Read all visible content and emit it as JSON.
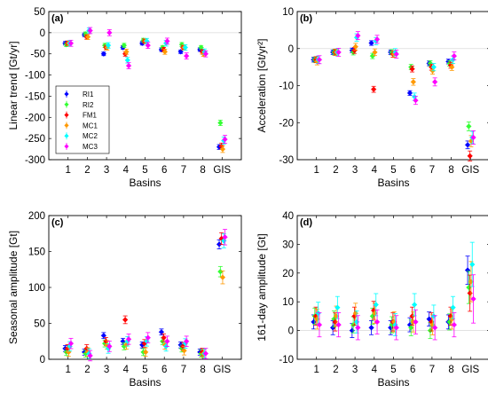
{
  "figure": {
    "series_styles": [
      {
        "name": "RI1",
        "color": "#0000ff"
      },
      {
        "name": "RI2",
        "color": "#33ff33"
      },
      {
        "name": "FM1",
        "color": "#ff0000"
      },
      {
        "name": "MC1",
        "color": "#ff9900"
      },
      {
        "name": "MC2",
        "color": "#00ffff"
      },
      {
        "name": "MC3",
        "color": "#ff00ff"
      }
    ],
    "marker_shape": "diamond",
    "error_bars": true,
    "category_axis_label": "Basins"
  },
  "chart_data": [
    {
      "type": "scatter",
      "panel": "(a)",
      "title": "",
      "xlabel": "Basins",
      "ylabel": "Linear trend [Gt/yr]",
      "categories": [
        "1",
        "2",
        "3",
        "4",
        "5",
        "6",
        "7",
        "8",
        "GIS"
      ],
      "ylim": [
        -300,
        50
      ],
      "yticks": [
        50,
        0,
        -50,
        -100,
        -150,
        -200,
        -250,
        -300
      ],
      "zero_line": true,
      "legend": "lower-left",
      "series": [
        {
          "name": "RI1",
          "values": [
            -25,
            -5,
            -50,
            -35,
            -25,
            -40,
            -45,
            -40,
            -270
          ]
        },
        {
          "name": "RI2",
          "values": [
            -28,
            -3,
            -30,
            -30,
            -18,
            -35,
            -28,
            -35,
            -213
          ]
        },
        {
          "name": "FM1",
          "values": [
            -25,
            -10,
            -35,
            -50,
            -20,
            -40,
            -35,
            -45,
            -268
          ]
        },
        {
          "name": "MC1",
          "values": [
            -25,
            -10,
            -35,
            -45,
            -20,
            -45,
            -35,
            -50,
            -275
          ]
        },
        {
          "name": "MC2",
          "values": [
            -25,
            5,
            -30,
            -65,
            -20,
            -25,
            -35,
            -45,
            -255
          ]
        },
        {
          "name": "MC3",
          "values": [
            -25,
            5,
            0,
            -78,
            -30,
            -20,
            -55,
            -50,
            -252
          ]
        }
      ]
    },
    {
      "type": "scatter",
      "panel": "(b)",
      "title": "",
      "xlabel": "Basins",
      "ylabel": "Acceleration [Gt/yr²]",
      "categories": [
        "1",
        "2",
        "3",
        "4",
        "5",
        "6",
        "7",
        "8",
        "GIS"
      ],
      "ylim": [
        -30,
        10
      ],
      "yticks": [
        10,
        0,
        -10,
        -20,
        -30
      ],
      "zero_line": true,
      "series": [
        {
          "name": "RI1",
          "values": [
            -3,
            -1,
            -0.5,
            1.5,
            -1,
            -12,
            -4,
            -3.5,
            -26
          ]
        },
        {
          "name": "RI2",
          "values": [
            -3,
            -1,
            -1,
            -2,
            -1,
            -5,
            -4,
            -4,
            -21
          ]
        },
        {
          "name": "FM1",
          "values": [
            -3,
            -1,
            -0.5,
            -11,
            -1.5,
            -5.5,
            -5,
            -4.5,
            -29
          ]
        },
        {
          "name": "MC1",
          "values": [
            -3.5,
            -1,
            0.5,
            -1,
            -1.5,
            -9,
            -6,
            -5,
            -25
          ]
        },
        {
          "name": "MC2",
          "values": [
            -3,
            -1,
            3,
            2,
            -1,
            -13,
            -5,
            -3,
            -24
          ]
        },
        {
          "name": "MC3",
          "values": [
            -3,
            -1,
            3.5,
            2.5,
            -1.5,
            -14,
            -9,
            -2,
            -24
          ]
        }
      ]
    },
    {
      "type": "scatter",
      "panel": "(c)",
      "title": "",
      "xlabel": "Basins",
      "ylabel": "Seasonal amplitude [Gt]",
      "categories": [
        "1",
        "2",
        "3",
        "4",
        "5",
        "6",
        "7",
        "8",
        "GIS"
      ],
      "ylim": [
        0,
        200
      ],
      "yticks": [
        200,
        150,
        100,
        50,
        0
      ],
      "zero_line": false,
      "series": [
        {
          "name": "RI1",
          "values": [
            15,
            10,
            33,
            25,
            20,
            38,
            20,
            10,
            160
          ]
        },
        {
          "name": "RI2",
          "values": [
            10,
            8,
            22,
            18,
            10,
            25,
            15,
            8,
            122
          ]
        },
        {
          "name": "FM1",
          "values": [
            15,
            15,
            25,
            55,
            22,
            30,
            18,
            10,
            168
          ]
        },
        {
          "name": "MC1",
          "values": [
            10,
            10,
            20,
            20,
            10,
            20,
            12,
            8,
            114
          ]
        },
        {
          "name": "MC2",
          "values": [
            18,
            8,
            15,
            25,
            25,
            18,
            22,
            8,
            165
          ]
        },
        {
          "name": "MC3",
          "values": [
            22,
            5,
            18,
            28,
            30,
            25,
            25,
            8,
            170
          ]
        }
      ]
    },
    {
      "type": "scatter",
      "panel": "(d)",
      "title": "",
      "xlabel": "Basins",
      "ylabel": "161-day amplitude [Gt]",
      "categories": [
        "1",
        "2",
        "3",
        "4",
        "5",
        "6",
        "7",
        "8",
        "GIS"
      ],
      "ylim": [
        -10,
        40
      ],
      "yticks": [
        40,
        30,
        20,
        10,
        0,
        -10
      ],
      "zero_line": true,
      "series": [
        {
          "name": "RI1",
          "values": [
            3,
            1,
            0,
            1,
            1,
            2,
            4,
            3,
            21
          ]
        },
        {
          "name": "RI2",
          "values": [
            5,
            4,
            2,
            5,
            2,
            1,
            0,
            3,
            15
          ]
        },
        {
          "name": "FM1",
          "values": [
            5,
            3,
            5,
            7,
            3,
            5,
            3,
            5,
            13
          ]
        },
        {
          "name": "MC1",
          "values": [
            4,
            5,
            6,
            6,
            3,
            3,
            2,
            4,
            17
          ]
        },
        {
          "name": "MC2",
          "values": [
            6,
            8,
            3,
            9,
            2,
            9,
            5,
            8,
            23
          ]
        },
        {
          "name": "MC3",
          "values": [
            2,
            2,
            1,
            3,
            1,
            3,
            1,
            2,
            11
          ]
        }
      ]
    }
  ]
}
